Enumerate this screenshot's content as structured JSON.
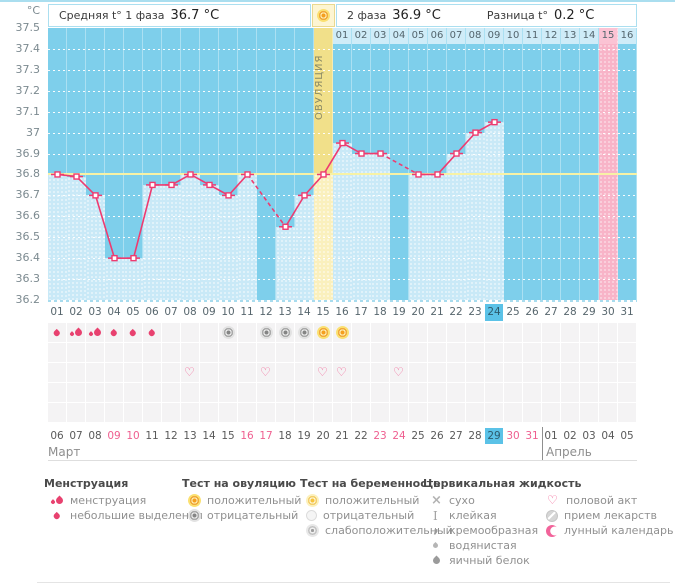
{
  "page": {
    "y_axis_unit": "°C"
  },
  "header": {
    "phase1_label": "Средняя t° 1 фаза",
    "phase1_value": "36.7 °C",
    "phase2_label": "2 фаза",
    "phase2_value": "36.9 °C",
    "diff_label": "Разница t°",
    "diff_value": "0.2 °C"
  },
  "chart_data": {
    "type": "line",
    "x": [
      1,
      2,
      3,
      4,
      5,
      6,
      7,
      8,
      9,
      10,
      11,
      12,
      13,
      14,
      15,
      16,
      17,
      18,
      19,
      20,
      21,
      22,
      23,
      24,
      25,
      26,
      27,
      28,
      29,
      30,
      31
    ],
    "series": [
      {
        "name": "basal-temperature",
        "values": [
          36.8,
          36.79,
          36.7,
          36.4,
          36.4,
          36.75,
          36.75,
          36.8,
          36.75,
          36.7,
          36.8,
          null,
          36.55,
          36.7,
          36.8,
          36.95,
          36.9,
          36.9,
          null,
          36.8,
          36.8,
          36.9,
          37.0,
          37.05,
          null,
          null,
          null,
          null,
          null,
          null,
          null
        ]
      }
    ],
    "ylim": [
      36.2,
      37.5
    ],
    "ytick_step": 0.1,
    "ytick_labels": [
      "37.5",
      "37.4",
      "37.3",
      "37.2",
      "37.1",
      "37",
      "36.9",
      "36.8",
      "36.7",
      "36.6",
      "36.5",
      "36.4",
      "36.3",
      "36.2"
    ],
    "coverline": 36.8,
    "ovulation_day": 15,
    "ovulation_label": "ОВУЛЯЦИЯ",
    "pink_highlight_day": 30,
    "today_day": 24,
    "phase2_day_labels": [
      "01",
      "02",
      "03",
      "04",
      "05",
      "06",
      "07",
      "08",
      "09",
      "10",
      "11",
      "12",
      "13",
      "14",
      "15",
      "16"
    ],
    "grid": "dotted-horizontal",
    "legend_position": "bottom"
  },
  "day_grid": {
    "day_numbers": [
      "01",
      "02",
      "03",
      "04",
      "05",
      "06",
      "07",
      "08",
      "09",
      "10",
      "11",
      "12",
      "13",
      "14",
      "15",
      "16",
      "17",
      "18",
      "19",
      "20",
      "21",
      "22",
      "23",
      "24",
      "25",
      "26",
      "27",
      "28",
      "29",
      "30",
      "31"
    ],
    "icon_rows": [
      {
        "name": "bleeding-and-ovulation-tests",
        "cells": [
          {
            "day": 1,
            "icon": "spotting"
          },
          {
            "day": 2,
            "icon": "menstruation"
          },
          {
            "day": 3,
            "icon": "menstruation"
          },
          {
            "day": 4,
            "icon": "spotting"
          },
          {
            "day": 5,
            "icon": "spotting"
          },
          {
            "day": 6,
            "icon": "spotting"
          },
          {
            "day": 10,
            "icon": "ovulation-test-negative"
          },
          {
            "day": 12,
            "icon": "ovulation-test-negative"
          },
          {
            "day": 13,
            "icon": "ovulation-test-negative"
          },
          {
            "day": 14,
            "icon": "ovulation-test-negative"
          },
          {
            "day": 15,
            "icon": "ovulation-test-positive"
          },
          {
            "day": 16,
            "icon": "ovulation-test-positive"
          }
        ]
      },
      {
        "name": "pregnancy-tests",
        "cells": []
      },
      {
        "name": "intercourse",
        "cells": [
          {
            "day": 8,
            "icon": "intercourse"
          },
          {
            "day": 12,
            "icon": "intercourse"
          },
          {
            "day": 15,
            "icon": "intercourse"
          },
          {
            "day": 16,
            "icon": "intercourse"
          },
          {
            "day": 19,
            "icon": "intercourse"
          }
        ]
      },
      {
        "name": "cervical-fluid",
        "cells": []
      },
      {
        "name": "medication",
        "cells": []
      }
    ]
  },
  "calendar": {
    "dates": [
      {
        "label": "06"
      },
      {
        "label": "07"
      },
      {
        "label": "08"
      },
      {
        "label": "09",
        "weekend": true
      },
      {
        "label": "10",
        "weekend": true
      },
      {
        "label": "11"
      },
      {
        "label": "12"
      },
      {
        "label": "13"
      },
      {
        "label": "14"
      },
      {
        "label": "15"
      },
      {
        "label": "16",
        "weekend": true
      },
      {
        "label": "17",
        "weekend": true
      },
      {
        "label": "18"
      },
      {
        "label": "19"
      },
      {
        "label": "20"
      },
      {
        "label": "21"
      },
      {
        "label": "22"
      },
      {
        "label": "23",
        "weekend": true
      },
      {
        "label": "24",
        "weekend": true
      },
      {
        "label": "25"
      },
      {
        "label": "26"
      },
      {
        "label": "27"
      },
      {
        "label": "28"
      },
      {
        "label": "29",
        "today": true
      },
      {
        "label": "30",
        "weekend": true
      },
      {
        "label": "31",
        "weekend": true
      },
      {
        "label": "01"
      },
      {
        "label": "02"
      },
      {
        "label": "03"
      },
      {
        "label": "04"
      },
      {
        "label": "05"
      }
    ],
    "april_start_index": 26,
    "months": [
      {
        "label": "Март"
      },
      {
        "label": "Апрель"
      }
    ]
  },
  "legend": {
    "columns": [
      {
        "title": "Менструация",
        "items": [
          {
            "icon": "menstruation",
            "label": "менструация"
          },
          {
            "icon": "spotting",
            "label": "небольшие выделения"
          }
        ]
      },
      {
        "title": "Тест на овуляцию",
        "items": [
          {
            "icon": "ovulation-test-positive",
            "label": "положительный"
          },
          {
            "icon": "ovulation-test-negative",
            "label": "отрицательный"
          }
        ]
      },
      {
        "title": "Тест на беременность",
        "items": [
          {
            "icon": "pregnancy-test-positive",
            "label": "положительный"
          },
          {
            "icon": "pregnancy-test-negative",
            "label": "отрицательный"
          },
          {
            "icon": "pregnancy-test-weak-positive",
            "label": "слабоположительный"
          }
        ]
      },
      {
        "title": "Цервикальная жидкость",
        "items": [
          {
            "icon": "cf-dry",
            "label": "сухо"
          },
          {
            "icon": "cf-sticky",
            "label": "клейкая"
          },
          {
            "icon": "cf-creamy",
            "label": "кремообразная"
          },
          {
            "icon": "cf-watery",
            "label": "водянистая"
          },
          {
            "icon": "cf-eggwhite",
            "label": "яичный белок"
          }
        ]
      },
      {
        "title": "",
        "items": [
          {
            "icon": "intercourse",
            "label": "половой акт"
          },
          {
            "icon": "medication",
            "label": "прием лекарств"
          },
          {
            "icon": "lunar-calendar",
            "label": "лунный календарь"
          }
        ]
      }
    ]
  }
}
